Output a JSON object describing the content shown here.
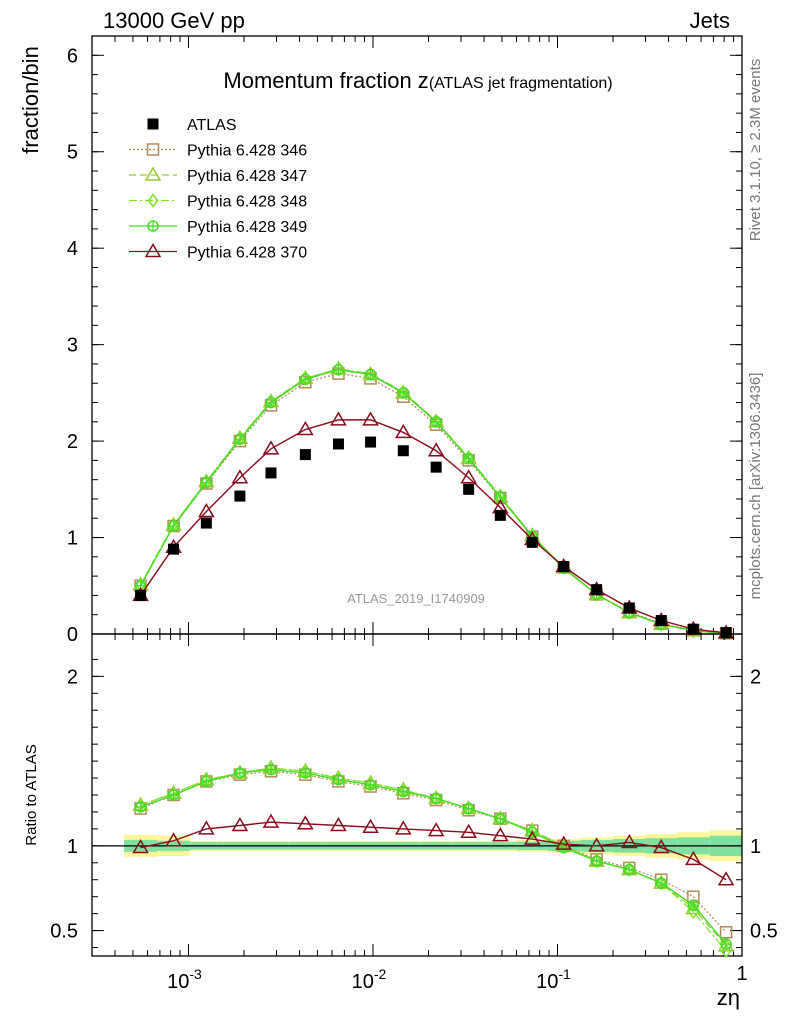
{
  "header": {
    "left": "13000 GeV pp",
    "right": "Jets"
  },
  "side_labels": {
    "rivet": "Rivet 3.1.10, ≥ 2.3M events",
    "source": "mcplots.cern.ch [arXiv:1306.3436]"
  },
  "watermark": "ATLAS_2019_I1740909",
  "chart_data": {
    "type": "line",
    "title_main": "Momentum fraction z",
    "title_sub": "(ATLAS jet fragmentation)",
    "ylabel": "fraction/bin",
    "ratio_ylabel": "Ratio to ATLAS",
    "xlabel": "zη",
    "xscale": "log",
    "xlim": [
      0.0003,
      1.0
    ],
    "ylim": [
      0,
      6.2
    ],
    "ratio_ylim": [
      0.35,
      2.25
    ],
    "main_yticks": [
      "0",
      "1",
      "2",
      "3",
      "4",
      "5",
      "6"
    ],
    "ratio_yticks": [
      "0.5",
      "1",
      "2"
    ],
    "xticks": [
      "10^-3",
      "10^-2",
      "10^-1",
      "1"
    ],
    "legend_position": "top-left",
    "x": [
      0.00055,
      0.00083,
      0.00125,
      0.0019,
      0.0028,
      0.0043,
      0.0065,
      0.0097,
      0.0146,
      0.022,
      0.033,
      0.049,
      0.073,
      0.108,
      0.163,
      0.245,
      0.365,
      0.545,
      0.82
    ],
    "atlas": {
      "name": "ATLAS",
      "values": [
        0.4,
        0.88,
        1.15,
        1.43,
        1.67,
        1.86,
        1.97,
        1.99,
        1.9,
        1.73,
        1.5,
        1.23,
        0.95,
        0.7,
        0.46,
        0.27,
        0.14,
        0.05,
        0.015
      ],
      "ratio_band_inner": [
        0.035,
        0.03,
        0.022,
        0.022,
        0.022,
        0.022,
        0.022,
        0.022,
        0.022,
        0.022,
        0.022,
        0.022,
        0.025,
        0.03,
        0.035,
        0.04,
        0.045,
        0.05,
        0.06
      ],
      "ratio_band_outer": [
        0.065,
        0.06,
        0.03,
        0.03,
        0.03,
        0.03,
        0.03,
        0.03,
        0.03,
        0.03,
        0.03,
        0.03,
        0.035,
        0.04,
        0.05,
        0.06,
        0.07,
        0.08,
        0.09
      ]
    },
    "series": [
      {
        "name": "Pythia 6.428 346",
        "color": "#b58b5a",
        "line": "dotted",
        "marker": "square-open",
        "values": [
          0.5,
          1.12,
          1.56,
          2.0,
          2.37,
          2.61,
          2.7,
          2.65,
          2.46,
          2.17,
          1.8,
          1.41,
          1.01,
          0.69,
          0.41,
          0.23,
          0.11,
          0.038,
          0.007
        ],
        "ratio": [
          1.22,
          1.3,
          1.38,
          1.42,
          1.44,
          1.42,
          1.38,
          1.35,
          1.31,
          1.27,
          1.21,
          1.16,
          1.09,
          1.0,
          0.92,
          0.87,
          0.8,
          0.7,
          0.49
        ]
      },
      {
        "name": "Pythia 6.428 347",
        "color": "#9acd32",
        "line": "dashed",
        "marker": "triangle-open",
        "values": [
          0.51,
          1.13,
          1.58,
          2.03,
          2.41,
          2.65,
          2.75,
          2.69,
          2.5,
          2.2,
          1.82,
          1.42,
          1.02,
          0.69,
          0.41,
          0.22,
          0.1,
          0.033,
          0.006
        ],
        "ratio": [
          1.24,
          1.31,
          1.39,
          1.43,
          1.46,
          1.44,
          1.4,
          1.37,
          1.33,
          1.28,
          1.22,
          1.16,
          1.09,
          1.0,
          0.91,
          0.86,
          0.78,
          0.63,
          0.41
        ]
      },
      {
        "name": "Pythia 6.428 348",
        "color": "#7fe12b",
        "line": "dashdot",
        "marker": "diamond-open",
        "values": [
          0.51,
          1.13,
          1.58,
          2.03,
          2.41,
          2.65,
          2.75,
          2.7,
          2.51,
          2.21,
          1.83,
          1.43,
          1.02,
          0.69,
          0.41,
          0.22,
          0.1,
          0.033,
          0.006
        ],
        "ratio": [
          1.24,
          1.31,
          1.39,
          1.43,
          1.46,
          1.44,
          1.4,
          1.37,
          1.33,
          1.28,
          1.22,
          1.16,
          1.09,
          1.0,
          0.91,
          0.86,
          0.78,
          0.61,
          0.38
        ]
      },
      {
        "name": "Pythia 6.428 349",
        "color": "#44dd22",
        "line": "solid",
        "marker": "circle-cross",
        "values": [
          0.5,
          1.12,
          1.57,
          2.02,
          2.4,
          2.64,
          2.74,
          2.69,
          2.5,
          2.2,
          1.82,
          1.42,
          1.01,
          0.68,
          0.41,
          0.22,
          0.1,
          0.034,
          0.006
        ],
        "ratio": [
          1.23,
          1.3,
          1.38,
          1.43,
          1.45,
          1.43,
          1.39,
          1.36,
          1.32,
          1.28,
          1.22,
          1.16,
          1.08,
          0.99,
          0.91,
          0.86,
          0.78,
          0.65,
          0.42
        ]
      },
      {
        "name": "Pythia 6.428 370",
        "color": "#8b0a1c",
        "line": "solid",
        "marker": "triangle-open",
        "values": [
          0.4,
          0.9,
          1.27,
          1.62,
          1.92,
          2.12,
          2.22,
          2.22,
          2.09,
          1.9,
          1.62,
          1.31,
          0.98,
          0.7,
          0.46,
          0.27,
          0.14,
          0.05,
          0.012
        ],
        "ratio": [
          0.99,
          1.03,
          1.1,
          1.12,
          1.14,
          1.13,
          1.12,
          1.11,
          1.1,
          1.09,
          1.08,
          1.06,
          1.04,
          1.01,
          1.0,
          1.02,
          0.99,
          0.92,
          0.8
        ]
      }
    ]
  }
}
